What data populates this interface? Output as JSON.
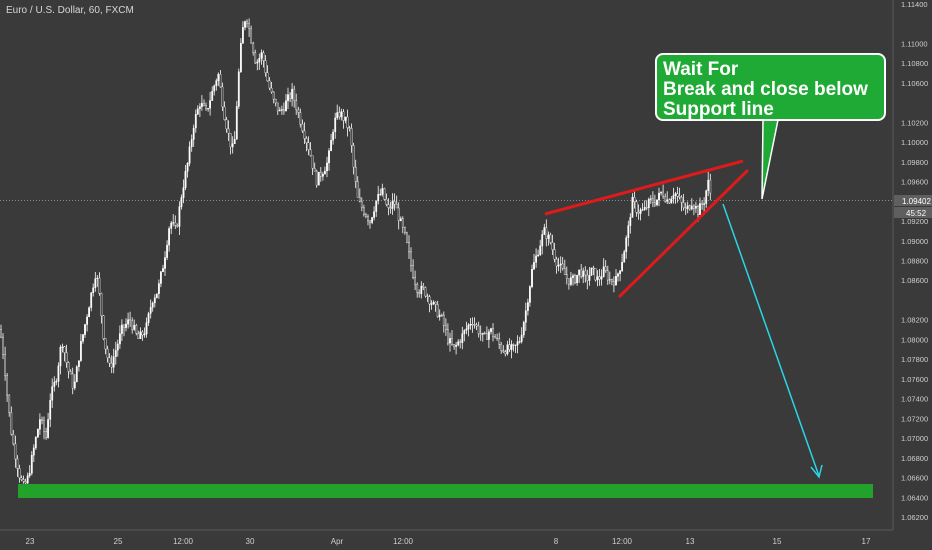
{
  "symbol_title": "Euro / U.S. Dollar, 60, FXCM",
  "callout": {
    "line1": "Wait For",
    "line2": "Break and close below",
    "line3": "Support line"
  },
  "colors": {
    "background": "#3a3a3a",
    "candles": "#ffffff",
    "trendline": "#dd1b1b",
    "target_zone": "#22a22b",
    "projection_arrow": "#2ad6e6",
    "callout_fill": "#1faa35",
    "axis_text": "#cfcfcf"
  },
  "chart_data": {
    "type": "candlestick",
    "symbol": "Euro / U.S. Dollar",
    "interval": "60",
    "source": "FXCM",
    "ylim": [
      1.06,
      1.116
    ],
    "x_tick_labels": [
      "23",
      "25",
      "12:00",
      "30",
      "Apr",
      "12:00",
      "8",
      "12:00",
      "13",
      "15",
      "17"
    ],
    "y_tick_labels": [
      "1.11400",
      "1.11000",
      "1.10800",
      "1.10600",
      "1.10200",
      "1.10000",
      "1.09800",
      "1.09600",
      "1.09200",
      "1.09000",
      "1.08800",
      "1.08600",
      "1.08200",
      "1.08000",
      "1.07800",
      "1.07600",
      "1.07400",
      "1.07200",
      "1.07000",
      "1.06800",
      "1.06600",
      "1.06400",
      "1.06200"
    ],
    "current_price": "1.09402",
    "countdown": "45:52",
    "annotations": [
      {
        "type": "rising-wedge-upper",
        "color": "red"
      },
      {
        "type": "rising-wedge-lower",
        "color": "red"
      },
      {
        "type": "support-zone",
        "color": "green",
        "price_range": [
          1.064,
          1.065
        ]
      },
      {
        "type": "projection-arrow",
        "color": "cyan",
        "target_price": 1.066
      }
    ],
    "price_path": [
      [
        0,
        1.081
      ],
      [
        4,
        1.078
      ],
      [
        8,
        1.0735
      ],
      [
        12,
        1.07
      ],
      [
        16,
        1.068
      ],
      [
        20,
        1.066
      ],
      [
        24,
        1.065
      ],
      [
        28,
        1.066
      ],
      [
        34,
        1.069
      ],
      [
        40,
        1.072
      ],
      [
        46,
        1.07
      ],
      [
        50,
        1.074
      ],
      [
        56,
        1.076
      ],
      [
        62,
        1.08
      ],
      [
        68,
        1.077
      ],
      [
        74,
        1.075
      ],
      [
        80,
        1.079
      ],
      [
        86,
        1.082
      ],
      [
        90,
        1.084
      ],
      [
        96,
        1.087
      ],
      [
        100,
        1.084
      ],
      [
        104,
        1.08
      ],
      [
        110,
        1.077
      ],
      [
        116,
        1.079
      ],
      [
        122,
        1.081
      ],
      [
        130,
        1.082
      ],
      [
        138,
        1.08
      ],
      [
        146,
        1.081
      ],
      [
        152,
        1.084
      ],
      [
        158,
        1.085
      ],
      [
        164,
        1.088
      ],
      [
        170,
        1.092
      ],
      [
        176,
        1.091
      ],
      [
        182,
        1.095
      ],
      [
        188,
        1.098
      ],
      [
        194,
        1.102
      ],
      [
        200,
        1.104
      ],
      [
        206,
        1.103
      ],
      [
        212,
        1.105
      ],
      [
        218,
        1.107
      ],
      [
        224,
        1.103
      ],
      [
        230,
        1.1
      ],
      [
        234,
        1.099
      ],
      [
        238,
        1.106
      ],
      [
        242,
        1.111
      ],
      [
        246,
        1.113
      ],
      [
        250,
        1.111
      ],
      [
        256,
        1.108
      ],
      [
        262,
        1.109
      ],
      [
        268,
        1.106
      ],
      [
        274,
        1.104
      ],
      [
        280,
        1.103
      ],
      [
        286,
        1.104
      ],
      [
        292,
        1.105
      ],
      [
        298,
        1.103
      ],
      [
        304,
        1.101
      ],
      [
        310,
        1.099
      ],
      [
        316,
        1.096
      ],
      [
        322,
        1.097
      ],
      [
        328,
        1.098
      ],
      [
        334,
        1.102
      ],
      [
        340,
        1.103
      ],
      [
        346,
        1.102
      ],
      [
        350,
        1.101
      ],
      [
        354,
        1.097
      ],
      [
        358,
        1.094
      ],
      [
        364,
        1.093
      ],
      [
        370,
        1.092
      ],
      [
        376,
        1.094
      ],
      [
        382,
        1.095
      ],
      [
        388,
        1.093
      ],
      [
        394,
        1.094
      ],
      [
        400,
        1.092
      ],
      [
        406,
        1.09
      ],
      [
        412,
        1.087
      ],
      [
        418,
        1.085
      ],
      [
        424,
        1.085
      ],
      [
        430,
        1.084
      ],
      [
        436,
        1.083
      ],
      [
        442,
        1.082
      ],
      [
        448,
        1.08
      ],
      [
        454,
        1.079
      ],
      [
        460,
        1.08
      ],
      [
        466,
        1.081
      ],
      [
        472,
        1.082
      ],
      [
        478,
        1.081
      ],
      [
        484,
        1.08
      ],
      [
        490,
        1.081
      ],
      [
        496,
        1.08
      ],
      [
        502,
        1.079
      ],
      [
        508,
        1.079
      ],
      [
        514,
        1.079
      ],
      [
        520,
        1.08
      ],
      [
        526,
        1.083
      ],
      [
        532,
        1.087
      ],
      [
        538,
        1.089
      ],
      [
        544,
        1.091
      ],
      [
        550,
        1.09
      ],
      [
        556,
        1.088
      ],
      [
        562,
        1.087
      ],
      [
        568,
        1.086
      ],
      [
        574,
        1.086
      ],
      [
        580,
        1.087
      ],
      [
        586,
        1.086
      ],
      [
        592,
        1.087
      ],
      [
        598,
        1.086
      ],
      [
        604,
        1.087
      ],
      [
        610,
        1.086
      ],
      [
        616,
        1.086
      ],
      [
        622,
        1.088
      ],
      [
        628,
        1.091
      ],
      [
        632,
        1.094
      ],
      [
        638,
        1.093
      ],
      [
        644,
        1.093
      ],
      [
        650,
        1.094
      ],
      [
        656,
        1.094
      ],
      [
        662,
        1.095
      ],
      [
        668,
        1.094
      ],
      [
        674,
        1.095
      ],
      [
        680,
        1.094
      ],
      [
        686,
        1.093
      ],
      [
        692,
        1.094
      ],
      [
        698,
        1.093
      ],
      [
        704,
        1.094
      ],
      [
        708,
        1.096
      ],
      [
        712,
        1.094
      ]
    ]
  }
}
